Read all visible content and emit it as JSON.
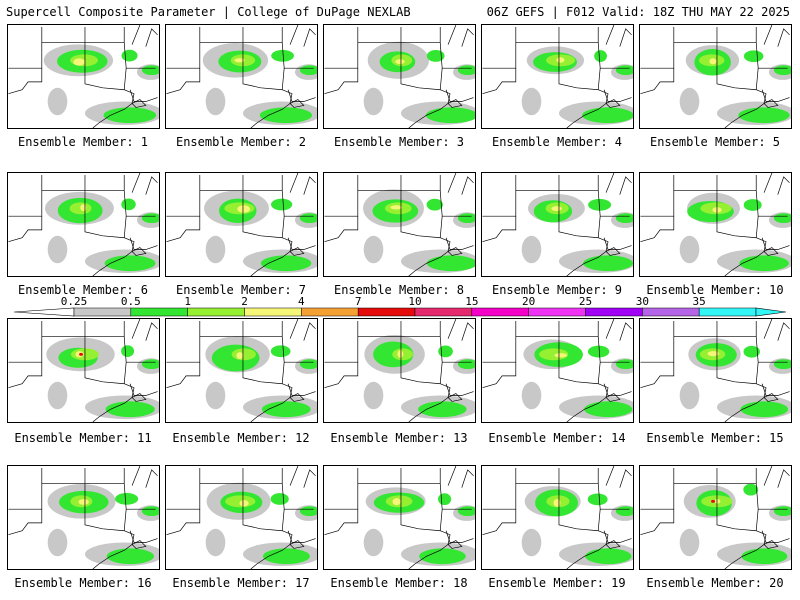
{
  "header": {
    "title": "Supercell Composite Parameter | College of DuPage NEXLAB",
    "run_info": "06Z GEFS | F012 Valid: 18Z THU MAY 22 2025"
  },
  "members": [
    "Ensemble Member: 1",
    "Ensemble Member: 2",
    "Ensemble Member: 3",
    "Ensemble Member: 4",
    "Ensemble Member: 5",
    "Ensemble Member: 6",
    "Ensemble Member: 7",
    "Ensemble Member: 8",
    "Ensemble Member: 9",
    "Ensemble Member: 10",
    "Ensemble Member: 11",
    "Ensemble Member: 12",
    "Ensemble Member: 13",
    "Ensemble Member: 14",
    "Ensemble Member: 15",
    "Ensemble Member: 16",
    "Ensemble Member: 17",
    "Ensemble Member: 18",
    "Ensemble Member: 19",
    "Ensemble Member: 20"
  ],
  "colorbar": {
    "ticks": [
      "0.25",
      "0.5",
      "1",
      "2",
      "4",
      "7",
      "10",
      "15",
      "20",
      "25",
      "30",
      "35"
    ],
    "colors": [
      "#c8c8c8",
      "#32e632",
      "#96f032",
      "#f5f578",
      "#f5a032",
      "#e60a0a",
      "#e6286e",
      "#f500c8",
      "#f032f5",
      "#a000f5",
      "#b464e6",
      "#32f5f5"
    ]
  }
}
